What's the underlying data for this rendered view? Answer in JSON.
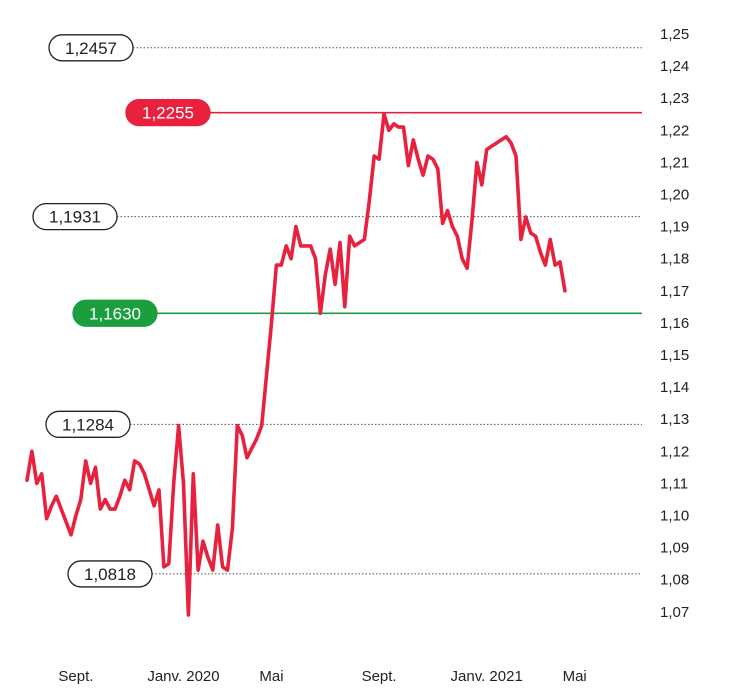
{
  "chart_data": {
    "type": "line",
    "title": "",
    "xlabel": "",
    "ylabel": "",
    "ylim": [
      1.065,
      1.25
    ],
    "y_ticks": [
      "1,25",
      "1,24",
      "1,23",
      "1,22",
      "1,21",
      "1,20",
      "1,19",
      "1,18",
      "1,17",
      "1,16",
      "1,15",
      "1,14",
      "1,13",
      "1,12",
      "1,11",
      "1,10",
      "1,09",
      "1,08",
      "1,07"
    ],
    "y_tick_values": [
      1.25,
      1.24,
      1.23,
      1.22,
      1.21,
      1.2,
      1.19,
      1.18,
      1.17,
      1.16,
      1.15,
      1.14,
      1.13,
      1.12,
      1.11,
      1.1,
      1.09,
      1.08,
      1.07
    ],
    "x_ticks": [
      {
        "label": "Sept.",
        "x": 10
      },
      {
        "label": "Janv. 2020",
        "x": 32
      },
      {
        "label": "Mai",
        "x": 50
      },
      {
        "label": "Sept.",
        "x": 72
      },
      {
        "label": "Janv. 2021",
        "x": 94
      },
      {
        "label": "Mai",
        "x": 112
      }
    ],
    "xlim": [
      0,
      126
    ],
    "series": [
      {
        "color": "#e8213f",
        "values": [
          1.111,
          1.12,
          1.11,
          1.113,
          1.099,
          1.103,
          1.106,
          1.102,
          1.098,
          1.094,
          1.1,
          1.105,
          1.117,
          1.11,
          1.115,
          1.102,
          1.105,
          1.102,
          1.102,
          1.106,
          1.111,
          1.108,
          1.117,
          1.116,
          1.113,
          1.108,
          1.103,
          1.108,
          1.084,
          1.085,
          1.11,
          1.128,
          1.11,
          1.069,
          1.113,
          1.083,
          1.092,
          1.087,
          1.083,
          1.097,
          1.084,
          1.083,
          1.096,
          1.128,
          1.125,
          1.118,
          1.121,
          1.124,
          1.128,
          1.144,
          1.16,
          1.178,
          1.178,
          1.184,
          1.18,
          1.19,
          1.184,
          1.184,
          1.184,
          1.18,
          1.163,
          1.175,
          1.183,
          1.172,
          1.185,
          1.165,
          1.187,
          1.184,
          1.185,
          1.186,
          1.198,
          1.212,
          1.211,
          1.225,
          1.22,
          1.222,
          1.221,
          1.221,
          1.209,
          1.217,
          1.211,
          1.206,
          1.212,
          1.211,
          1.208,
          1.191,
          1.195,
          1.19,
          1.187,
          1.18,
          1.177,
          1.192,
          1.21,
          1.203,
          1.214,
          1.215,
          1.216,
          1.217,
          1.218,
          1.216,
          1.212,
          1.186,
          1.193,
          1.188,
          1.187,
          1.182,
          1.178,
          1.186,
          1.178,
          1.179,
          1.17
        ]
      }
    ],
    "reference_lines": [
      {
        "label": "1,2457",
        "value": 1.2457,
        "style": "dotted",
        "line_color": "#555555",
        "badge_fill": "#ffffff",
        "badge_stroke": "#222222",
        "text_color": "#222222"
      },
      {
        "label": "1,2255",
        "value": 1.2255,
        "style": "solid",
        "line_color": "#e8213f",
        "badge_fill": "#e8213f",
        "badge_stroke": "#e8213f",
        "text_color": "#ffffff"
      },
      {
        "label": "1,1931",
        "value": 1.1931,
        "style": "dotted",
        "line_color": "#555555",
        "badge_fill": "#ffffff",
        "badge_stroke": "#222222",
        "text_color": "#222222"
      },
      {
        "label": "1,1630",
        "value": 1.163,
        "style": "solid",
        "line_color": "#1a9e3e",
        "badge_fill": "#1a9e3e",
        "badge_stroke": "#1a9e3e",
        "text_color": "#ffffff"
      },
      {
        "label": "1,1284",
        "value": 1.1284,
        "style": "dotted",
        "line_color": "#555555",
        "badge_fill": "#ffffff",
        "badge_stroke": "#222222",
        "text_color": "#222222"
      },
      {
        "label": "1,0818",
        "value": 1.0818,
        "style": "dotted",
        "line_color": "#555555",
        "badge_fill": "#ffffff",
        "badge_stroke": "#222222",
        "text_color": "#222222"
      }
    ],
    "grid": false,
    "legend": "none"
  }
}
